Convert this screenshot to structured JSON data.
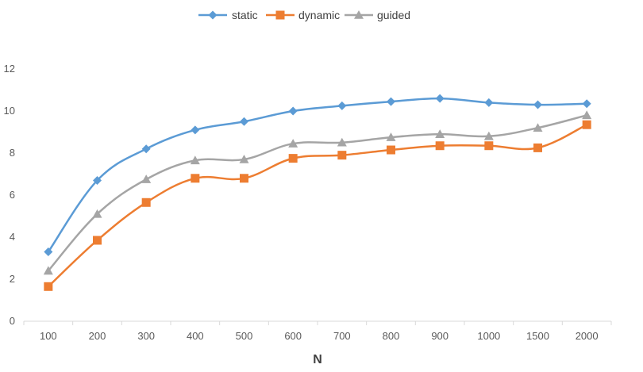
{
  "chart_data": {
    "type": "line",
    "title": "",
    "xlabel": "N",
    "ylabel": "",
    "categories": [
      "100",
      "200",
      "300",
      "400",
      "500",
      "600",
      "700",
      "800",
      "900",
      "1000",
      "1500",
      "2000"
    ],
    "ylim": [
      0,
      12
    ],
    "yticks": [
      0,
      2,
      4,
      6,
      8,
      10,
      12
    ],
    "grid": false,
    "legend_position": "top",
    "series": [
      {
        "name": "static",
        "color": "#5B9BD5",
        "marker": "diamond",
        "values": [
          3.3,
          6.7,
          8.2,
          9.1,
          9.5,
          10.0,
          10.25,
          10.45,
          10.6,
          10.4,
          10.3,
          10.35
        ]
      },
      {
        "name": "dynamic",
        "color": "#ED7D31",
        "marker": "square",
        "values": [
          1.65,
          3.85,
          5.65,
          6.8,
          6.8,
          7.75,
          7.9,
          8.15,
          8.35,
          8.35,
          8.25,
          9.35
        ]
      },
      {
        "name": "guided",
        "color": "#A5A5A5",
        "marker": "triangle",
        "values": [
          2.4,
          5.1,
          6.75,
          7.65,
          7.7,
          8.45,
          8.5,
          8.75,
          8.9,
          8.8,
          9.2,
          9.8
        ]
      }
    ]
  }
}
